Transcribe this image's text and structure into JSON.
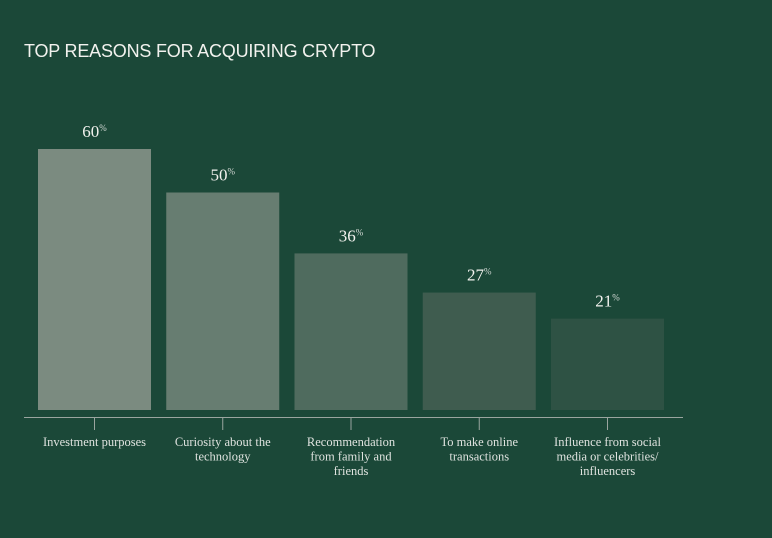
{
  "chart_data": {
    "type": "bar",
    "title": "TOP REASONS FOR ACQUIRING CRYPTO",
    "unit_suffix": "%",
    "categories": [
      [
        "Investment purposes"
      ],
      [
        "Curiosity about the",
        "technology"
      ],
      [
        "Recommendation",
        "from family and",
        "friends"
      ],
      [
        "To make online",
        "transactions"
      ],
      [
        "Influence from social",
        "media or celebrities/",
        "influencers"
      ]
    ],
    "values": [
      60,
      50,
      36,
      27,
      21
    ],
    "bar_colors": [
      "#7b8b80",
      "#677d71",
      "#4f6b5e",
      "#3f5c4f",
      "#2e5244"
    ],
    "ylim": [
      0,
      60
    ],
    "grid": false,
    "legend": "none"
  },
  "colors": {
    "background": "#1b4838",
    "text": "#f2f2ee",
    "axis": "#9aa59f"
  }
}
